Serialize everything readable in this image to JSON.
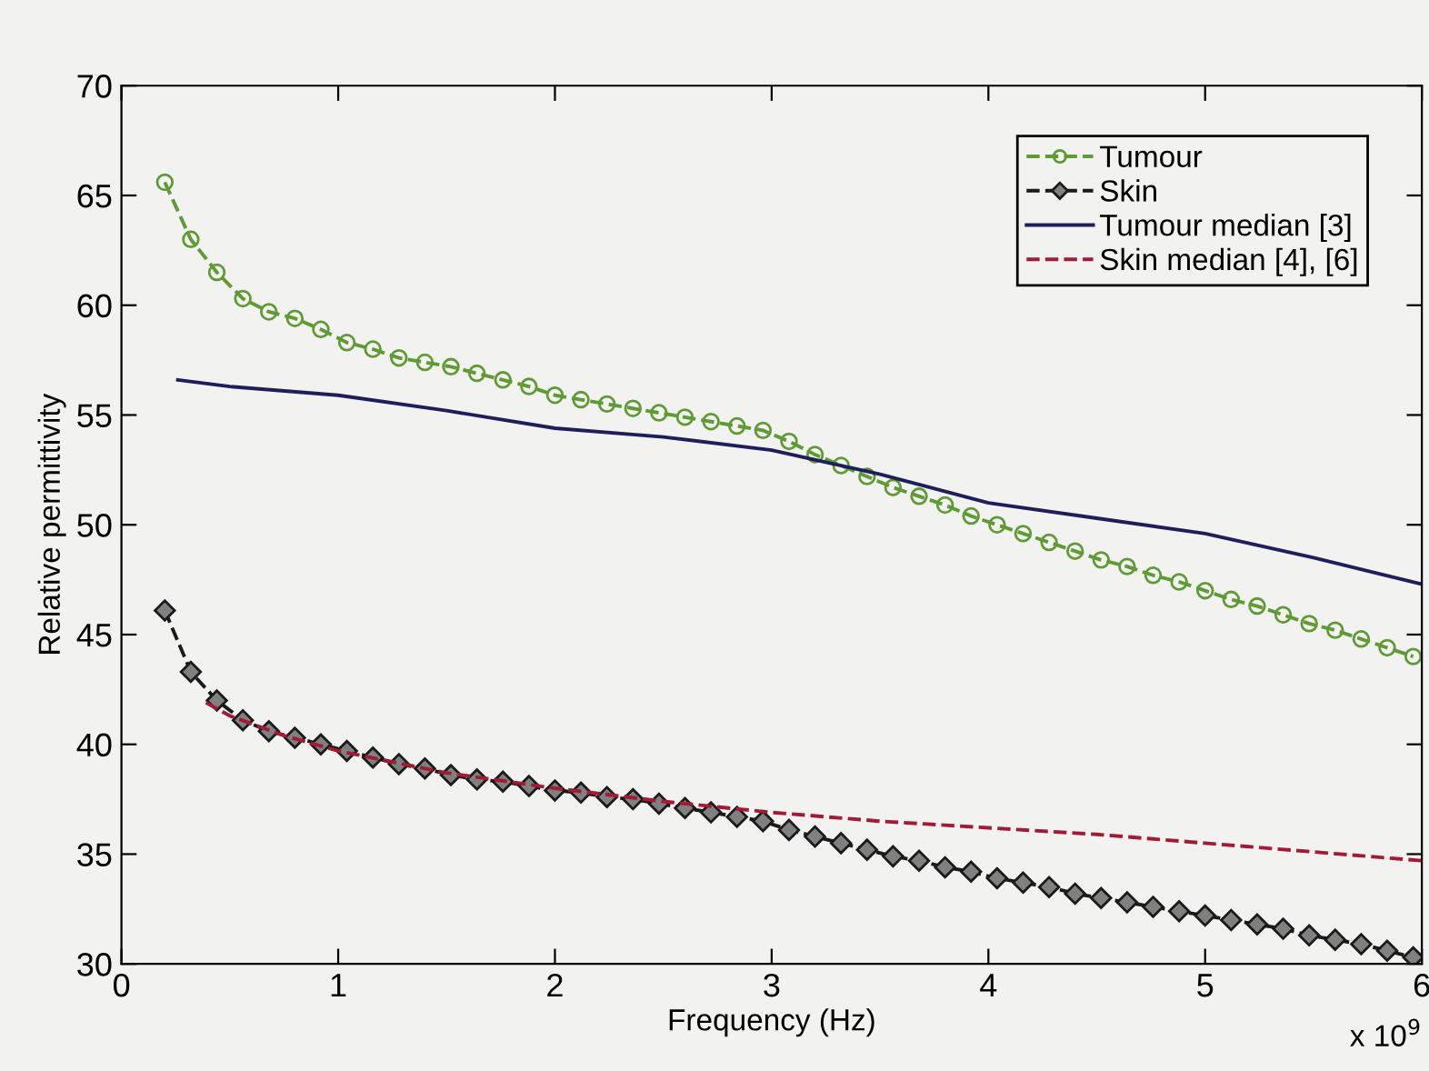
{
  "chart_data": {
    "type": "line",
    "xlabel": "Frequency (Hz)",
    "ylabel": "Relative permittivity",
    "annotations": [
      "x 10$^{9}$"
    ],
    "xlim": [
      0,
      6
    ],
    "xticks": [
      0,
      1,
      2,
      3,
      4,
      5,
      6
    ],
    "ylim": [
      30,
      70
    ],
    "yticks": [
      30,
      35,
      40,
      45,
      50,
      55,
      60,
      65,
      70
    ],
    "grid": false,
    "legend": "top right",
    "series": [
      {
        "name": "Tumour",
        "color": "#5f9a35",
        "marker": "circle",
        "line_style": "dashed",
        "x": [
          0.2,
          0.32,
          0.44,
          0.56,
          0.68,
          0.8,
          0.92,
          1.04,
          1.16,
          1.28,
          1.4,
          1.52,
          1.64,
          1.76,
          1.88,
          2.0,
          2.12,
          2.24,
          2.36,
          2.48,
          2.6,
          2.72,
          2.84,
          2.96,
          3.08,
          3.2,
          3.32,
          3.44,
          3.56,
          3.68,
          3.8,
          3.92,
          4.04,
          4.16,
          4.28,
          4.4,
          4.52,
          4.64,
          4.76,
          4.88,
          5.0,
          5.12,
          5.24,
          5.36,
          5.48,
          5.6,
          5.72,
          5.84,
          5.96
        ],
        "values": [
          65.6,
          63.0,
          61.5,
          60.3,
          59.7,
          59.4,
          58.9,
          58.3,
          58.0,
          57.6,
          57.4,
          57.2,
          56.9,
          56.6,
          56.3,
          55.9,
          55.7,
          55.5,
          55.3,
          55.1,
          54.9,
          54.7,
          54.5,
          54.3,
          53.8,
          53.2,
          52.7,
          52.2,
          51.7,
          51.3,
          50.9,
          50.4,
          50.0,
          49.6,
          49.2,
          48.8,
          48.4,
          48.1,
          47.7,
          47.4,
          47.0,
          46.6,
          46.3,
          45.9,
          45.5,
          45.2,
          44.8,
          44.4,
          44.0
        ]
      },
      {
        "name": "Skin",
        "color": "#1a1a1a",
        "marker": "diamond",
        "line_style": "dashed",
        "x": [
          0.2,
          0.32,
          0.44,
          0.56,
          0.68,
          0.8,
          0.92,
          1.04,
          1.16,
          1.28,
          1.4,
          1.52,
          1.64,
          1.76,
          1.88,
          2.0,
          2.12,
          2.24,
          2.36,
          2.48,
          2.6,
          2.72,
          2.84,
          2.96,
          3.08,
          3.2,
          3.32,
          3.44,
          3.56,
          3.68,
          3.8,
          3.92,
          4.04,
          4.16,
          4.28,
          4.4,
          4.52,
          4.64,
          4.76,
          4.88,
          5.0,
          5.12,
          5.24,
          5.36,
          5.48,
          5.6,
          5.72,
          5.84,
          5.96
        ],
        "values": [
          46.1,
          43.3,
          42.0,
          41.1,
          40.6,
          40.3,
          40.0,
          39.7,
          39.4,
          39.1,
          38.9,
          38.6,
          38.4,
          38.3,
          38.1,
          37.9,
          37.8,
          37.6,
          37.5,
          37.3,
          37.1,
          36.9,
          36.7,
          36.5,
          36.1,
          35.8,
          35.5,
          35.2,
          34.9,
          34.7,
          34.4,
          34.2,
          33.9,
          33.7,
          33.5,
          33.2,
          33.0,
          32.8,
          32.6,
          32.4,
          32.2,
          32.0,
          31.8,
          31.6,
          31.3,
          31.1,
          30.9,
          30.6,
          30.3
        ]
      },
      {
        "name": "Tumour median [3]",
        "color": "#1c1f5a",
        "marker": "none",
        "line_style": "solid",
        "x": [
          0.26,
          0.5,
          1.0,
          1.5,
          2.0,
          2.5,
          3.0,
          3.5,
          4.0,
          4.5,
          5.0,
          5.5,
          6.0
        ],
        "values": [
          56.6,
          56.3,
          55.9,
          55.2,
          54.4,
          54.0,
          53.4,
          52.3,
          51.0,
          50.3,
          49.6,
          48.5,
          47.3
        ]
      },
      {
        "name": "Skin median [4], [6]",
        "color": "#a31a35",
        "marker": "none",
        "line_style": "dashed",
        "x": [
          0.39,
          0.5,
          0.75,
          1.0,
          1.5,
          2.0,
          2.5,
          3.0,
          3.5,
          4.0,
          4.5,
          5.0,
          5.5,
          6.0
        ],
        "values": [
          41.9,
          41.3,
          40.4,
          39.7,
          38.7,
          38.0,
          37.4,
          36.9,
          36.5,
          36.2,
          35.9,
          35.5,
          35.1,
          34.7
        ]
      }
    ]
  }
}
